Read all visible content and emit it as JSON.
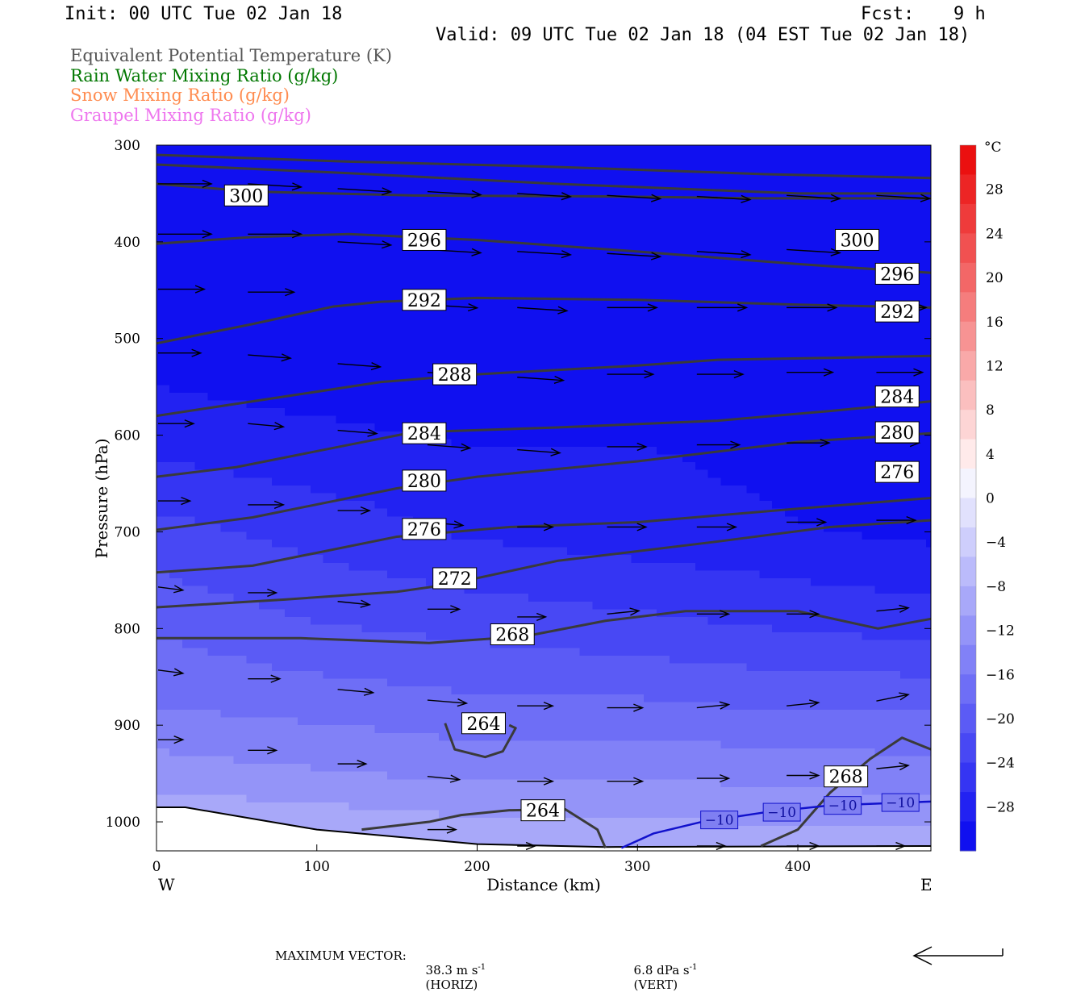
{
  "header": {
    "init": "Init: 00 UTC Tue 02 Jan 18",
    "fcst_label": "Fcst:",
    "fcst_value": "9 h",
    "valid": "Valid: 09 UTC Tue 02 Jan 18 (04 EST Tue 02 Jan 18)"
  },
  "fields": [
    {
      "label": "Equivalent Potential Temperature (K)",
      "color": "#555555"
    },
    {
      "label": "Rain Water Mixing Ratio (g/kg)",
      "color": "#007700"
    },
    {
      "label": "Snow Mixing Ratio (g/kg)",
      "color": "#ff8c50"
    },
    {
      "label": "Graupel Mixing Ratio (g/kg)",
      "color": "#ee77ee"
    }
  ],
  "footer": {
    "max_vector_label": "MAXIMUM VECTOR:",
    "horiz_value": "38.3 m s",
    "horiz_exp": "-1",
    "horiz_tag": "(HORIZ)",
    "vert_value": "6.8 dPa s",
    "vert_exp": "-1",
    "vert_tag": "(VERT)"
  },
  "chart_data": {
    "type": "cross-section",
    "xlabel": "Distance (km)",
    "ylabel": "Pressure (hPa)",
    "xlim": [
      0,
      483
    ],
    "ylim": [
      1030,
      300
    ],
    "x_ticks": [
      0,
      100,
      200,
      300,
      400
    ],
    "y_ticks": [
      300,
      400,
      500,
      600,
      700,
      800,
      900,
      1000
    ],
    "x_end_labels": {
      "left": "W",
      "right": "E"
    },
    "colorbar": {
      "unit": "°C",
      "ticks": [
        28,
        24,
        20,
        16,
        12,
        8,
        4,
        0,
        -4,
        -8,
        -12,
        -16,
        -20,
        -24,
        -28
      ],
      "range": [
        -32,
        32
      ],
      "colors": [
        "#1010f0",
        "#2222f2",
        "#3535f3",
        "#4848f4",
        "#5b5bf5",
        "#6e6ef6",
        "#8181f7",
        "#9494f8",
        "#a8a8f9",
        "#bbbbfb",
        "#ceceFc",
        "#e1e1fd",
        "#f4f4fe",
        "#ffeaea",
        "#fdd5d5",
        "#fbbfbf",
        "#f9a9a9",
        "#f79393",
        "#f57d7d",
        "#f36767",
        "#f15151",
        "#ef3b3b",
        "#ed2525",
        "#eb1010"
      ]
    },
    "theta_e_contours": [
      {
        "level": 300,
        "points": [
          [
            0,
            340
          ],
          [
            60,
            348
          ],
          [
            160,
            352
          ],
          [
            280,
            353
          ],
          [
            380,
            355
          ],
          [
            483,
            355
          ]
        ]
      },
      {
        "level": 300,
        "points": [
          [
            0,
            310
          ],
          [
            120,
            317
          ],
          [
            240,
            322
          ],
          [
            380,
            330
          ],
          [
            483,
            334
          ]
        ]
      },
      {
        "level": 300,
        "points": [
          [
            0,
            320
          ],
          [
            120,
            329
          ],
          [
            250,
            340
          ],
          [
            400,
            350
          ],
          [
            483,
            350
          ]
        ]
      },
      {
        "level": 296,
        "points": [
          [
            0,
            402
          ],
          [
            60,
            395
          ],
          [
            120,
            392
          ],
          [
            200,
            398
          ],
          [
            300,
            410
          ],
          [
            400,
            423
          ],
          [
            483,
            432
          ]
        ]
      },
      {
        "level": 292,
        "points": [
          [
            0,
            505
          ],
          [
            60,
            485
          ],
          [
            110,
            467
          ],
          [
            140,
            462
          ],
          [
            200,
            458
          ],
          [
            300,
            460
          ],
          [
            400,
            465
          ],
          [
            483,
            468
          ]
        ]
      },
      {
        "level": 288,
        "points": [
          [
            0,
            580
          ],
          [
            80,
            560
          ],
          [
            140,
            545
          ],
          [
            200,
            537
          ],
          [
            300,
            528
          ],
          [
            350,
            522
          ],
          [
            420,
            520
          ],
          [
            483,
            518
          ]
        ]
      },
      {
        "level": 284,
        "points": [
          [
            0,
            643
          ],
          [
            50,
            633
          ],
          [
            120,
            610
          ],
          [
            160,
            597
          ],
          [
            250,
            592
          ],
          [
            350,
            585
          ],
          [
            420,
            575
          ],
          [
            483,
            565
          ]
        ]
      },
      {
        "level": 280,
        "points": [
          [
            0,
            698
          ],
          [
            60,
            685
          ],
          [
            150,
            655
          ],
          [
            200,
            643
          ],
          [
            300,
            627
          ],
          [
            400,
            607
          ],
          [
            483,
            598
          ]
        ]
      },
      {
        "level": 276,
        "points": [
          [
            0,
            742
          ],
          [
            60,
            735
          ],
          [
            150,
            705
          ],
          [
            220,
            695
          ],
          [
            300,
            690
          ],
          [
            400,
            676
          ],
          [
            483,
            665
          ]
        ]
      },
      {
        "level": 272,
        "points": [
          [
            0,
            778
          ],
          [
            80,
            770
          ],
          [
            150,
            762
          ],
          [
            180,
            755
          ],
          [
            250,
            730
          ],
          [
            350,
            710
          ],
          [
            420,
            695
          ],
          [
            483,
            688
          ]
        ]
      },
      {
        "level": 268,
        "points": [
          [
            0,
            810
          ],
          [
            90,
            810
          ],
          [
            170,
            815
          ],
          [
            230,
            808
          ],
          [
            280,
            792
          ],
          [
            330,
            782
          ],
          [
            400,
            782
          ],
          [
            450,
            800
          ],
          [
            483,
            790
          ]
        ]
      },
      {
        "level": 264,
        "points": [
          [
            180,
            898
          ],
          [
            186,
            925
          ],
          [
            205,
            933
          ],
          [
            216,
            927
          ],
          [
            224,
            903
          ],
          [
            220,
            900
          ]
        ]
      },
      {
        "level": 264,
        "points": [
          [
            128,
            1008
          ],
          [
            170,
            1000
          ],
          [
            190,
            993
          ],
          [
            220,
            988
          ],
          [
            255,
            987
          ],
          [
            275,
            1008
          ],
          [
            280,
            1027
          ]
        ]
      },
      {
        "level": 268,
        "points": [
          [
            377,
            1025
          ],
          [
            400,
            1008
          ],
          [
            420,
            970
          ],
          [
            445,
            935
          ],
          [
            465,
            913
          ],
          [
            483,
            925
          ]
        ]
      }
    ],
    "theta_e_labels": [
      {
        "text": "300",
        "x": 56,
        "p": 352
      },
      {
        "text": "296",
        "x": 167,
        "p": 398
      },
      {
        "text": "300",
        "x": 437,
        "p": 398
      },
      {
        "text": "296",
        "x": 462,
        "p": 433
      },
      {
        "text": "292",
        "x": 167,
        "p": 460
      },
      {
        "text": "292",
        "x": 462,
        "p": 472
      },
      {
        "text": "288",
        "x": 186,
        "p": 537
      },
      {
        "text": "284",
        "x": 462,
        "p": 560
      },
      {
        "text": "284",
        "x": 167,
        "p": 598
      },
      {
        "text": "280",
        "x": 462,
        "p": 597
      },
      {
        "text": "276",
        "x": 462,
        "p": 638
      },
      {
        "text": "280",
        "x": 167,
        "p": 647
      },
      {
        "text": "276",
        "x": 167,
        "p": 697
      },
      {
        "text": "272",
        "x": 186,
        "p": 748
      },
      {
        "text": "268",
        "x": 222,
        "p": 806
      },
      {
        "text": "264",
        "x": 204,
        "p": 898
      },
      {
        "text": "268",
        "x": 430,
        "p": 953
      },
      {
        "text": "264",
        "x": 241,
        "p": 988
      }
    ],
    "isotherm": {
      "level": -10,
      "points": [
        [
          290,
          1027
        ],
        [
          310,
          1012
        ],
        [
          340,
          1000
        ],
        [
          380,
          990
        ],
        [
          420,
          983
        ],
        [
          483,
          979
        ]
      ],
      "labels": [
        {
          "text": "-10",
          "x": 351,
          "p": 998
        },
        {
          "text": "-10",
          "x": 390,
          "p": 990
        },
        {
          "text": "-10",
          "x": 428,
          "p": 983
        },
        {
          "text": "-10",
          "x": 464,
          "p": 980
        }
      ]
    },
    "surface": [
      [
        0,
        985
      ],
      [
        18,
        985
      ],
      [
        100,
        1008
      ],
      [
        200,
        1023
      ],
      [
        280,
        1026
      ],
      [
        483,
        1025
      ]
    ],
    "temperature_field": [
      {
        "p": 300,
        "t": [
          -31,
          -31,
          -31,
          -31,
          -31,
          -31
        ]
      },
      {
        "p": 500,
        "t": [
          -31,
          -31,
          -31,
          -31,
          -31,
          -31
        ]
      },
      {
        "p": 560,
        "t": [
          -29,
          -30,
          -31,
          -31,
          -31,
          -31
        ]
      },
      {
        "p": 620,
        "t": [
          -27,
          -28,
          -29,
          -29,
          -30,
          -31
        ]
      },
      {
        "p": 700,
        "t": [
          -23,
          -25,
          -27,
          -28,
          -29,
          -30
        ]
      },
      {
        "p": 800,
        "t": [
          -19,
          -21,
          -22,
          -23,
          -24,
          -25
        ]
      },
      {
        "p": 880,
        "t": [
          -16,
          -17,
          -18,
          -18,
          -19,
          -19
        ]
      },
      {
        "p": 950,
        "t": [
          -12,
          -13,
          -14,
          -14,
          -14,
          -15
        ]
      },
      {
        "p": 1030,
        "t": [
          -6,
          -7,
          -8,
          -8,
          -9,
          -9
        ]
      }
    ],
    "temperature_columns_km": [
      0,
      96,
      193,
      290,
      386,
      483
    ],
    "wind_vectors_note": "horizontal circulation vectors",
    "wind_vectors": [
      {
        "x": 0,
        "p": 340,
        "u": 30,
        "w": 0
      },
      {
        "x": 56,
        "p": 340,
        "u": 30,
        "w": -1
      },
      {
        "x": 112,
        "p": 345,
        "u": 30,
        "w": -1
      },
      {
        "x": 168,
        "p": 348,
        "u": 30,
        "w": -1
      },
      {
        "x": 224,
        "p": 350,
        "u": 30,
        "w": -1
      },
      {
        "x": 280,
        "p": 352,
        "u": 30,
        "w": -1
      },
      {
        "x": 336,
        "p": 353,
        "u": 30,
        "w": -1
      },
      {
        "x": 392,
        "p": 352,
        "u": 30,
        "w": -1
      },
      {
        "x": 448,
        "p": 352,
        "u": 30,
        "w": -1
      },
      {
        "x": 0,
        "p": 392,
        "u": 30,
        "w": 0
      },
      {
        "x": 56,
        "p": 392,
        "u": 30,
        "w": 0
      },
      {
        "x": 112,
        "p": 400,
        "u": 30,
        "w": -1
      },
      {
        "x": 168,
        "p": 408,
        "u": 30,
        "w": -1
      },
      {
        "x": 224,
        "p": 410,
        "u": 30,
        "w": -1
      },
      {
        "x": 280,
        "p": 412,
        "u": 30,
        "w": -1
      },
      {
        "x": 336,
        "p": 410,
        "u": 30,
        "w": -1
      },
      {
        "x": 392,
        "p": 408,
        "u": 30,
        "w": -1
      },
      {
        "x": 0,
        "p": 449,
        "u": 26,
        "w": 0
      },
      {
        "x": 56,
        "p": 452,
        "u": 26,
        "w": 0
      },
      {
        "x": 168,
        "p": 465,
        "u": 28,
        "w": -1
      },
      {
        "x": 224,
        "p": 468,
        "u": 28,
        "w": -1
      },
      {
        "x": 280,
        "p": 468,
        "u": 28,
        "w": 0
      },
      {
        "x": 336,
        "p": 468,
        "u": 28,
        "w": 0
      },
      {
        "x": 392,
        "p": 468,
        "u": 28,
        "w": 0
      },
      {
        "x": 448,
        "p": 468,
        "u": 28,
        "w": 0
      },
      {
        "x": 0,
        "p": 515,
        "u": 24,
        "w": 0
      },
      {
        "x": 56,
        "p": 517,
        "u": 24,
        "w": -1
      },
      {
        "x": 112,
        "p": 526,
        "u": 24,
        "w": -1
      },
      {
        "x": 168,
        "p": 535,
        "u": 24,
        "w": -1
      },
      {
        "x": 224,
        "p": 540,
        "u": 26,
        "w": -1
      },
      {
        "x": 280,
        "p": 537,
        "u": 26,
        "w": 0
      },
      {
        "x": 336,
        "p": 537,
        "u": 26,
        "w": 0
      },
      {
        "x": 392,
        "p": 535,
        "u": 26,
        "w": 0
      },
      {
        "x": 448,
        "p": 535,
        "u": 26,
        "w": 0
      },
      {
        "x": 0,
        "p": 588,
        "u": 20,
        "w": 0
      },
      {
        "x": 56,
        "p": 588,
        "u": 20,
        "w": -1
      },
      {
        "x": 112,
        "p": 595,
        "u": 22,
        "w": -1
      },
      {
        "x": 168,
        "p": 610,
        "u": 24,
        "w": -1
      },
      {
        "x": 224,
        "p": 615,
        "u": 24,
        "w": -1
      },
      {
        "x": 280,
        "p": 612,
        "u": 22,
        "w": 0
      },
      {
        "x": 336,
        "p": 610,
        "u": 24,
        "w": 0
      },
      {
        "x": 392,
        "p": 608,
        "u": 24,
        "w": 0
      },
      {
        "x": 448,
        "p": 608,
        "u": 24,
        "w": 0
      },
      {
        "x": 0,
        "p": 668,
        "u": 18,
        "w": 0
      },
      {
        "x": 56,
        "p": 672,
        "u": 20,
        "w": 0
      },
      {
        "x": 112,
        "p": 678,
        "u": 18,
        "w": 0
      },
      {
        "x": 168,
        "p": 690,
        "u": 20,
        "w": -1
      },
      {
        "x": 224,
        "p": 695,
        "u": 20,
        "w": 0
      },
      {
        "x": 280,
        "p": 695,
        "u": 22,
        "w": 0
      },
      {
        "x": 336,
        "p": 695,
        "u": 22,
        "w": 0
      },
      {
        "x": 392,
        "p": 690,
        "u": 22,
        "w": 0
      },
      {
        "x": 448,
        "p": 688,
        "u": 22,
        "w": 0
      },
      {
        "x": 0,
        "p": 757,
        "u": 14,
        "w": -1
      },
      {
        "x": 56,
        "p": 763,
        "u": 16,
        "w": 0
      },
      {
        "x": 112,
        "p": 772,
        "u": 18,
        "w": -1
      },
      {
        "x": 168,
        "p": 780,
        "u": 18,
        "w": 0
      },
      {
        "x": 224,
        "p": 788,
        "u": 16,
        "w": 0
      },
      {
        "x": 280,
        "p": 785,
        "u": 18,
        "w": 1
      },
      {
        "x": 336,
        "p": 785,
        "u": 18,
        "w": 0
      },
      {
        "x": 392,
        "p": 785,
        "u": 18,
        "w": 0
      },
      {
        "x": 448,
        "p": 782,
        "u": 18,
        "w": 1
      },
      {
        "x": 0,
        "p": 843,
        "u": 14,
        "w": -1
      },
      {
        "x": 56,
        "p": 852,
        "u": 18,
        "w": 0
      },
      {
        "x": 112,
        "p": 863,
        "u": 20,
        "w": -1
      },
      {
        "x": 168,
        "p": 874,
        "u": 22,
        "w": -1
      },
      {
        "x": 224,
        "p": 880,
        "u": 20,
        "w": 0
      },
      {
        "x": 280,
        "p": 882,
        "u": 20,
        "w": 0
      },
      {
        "x": 336,
        "p": 882,
        "u": 18,
        "w": 1
      },
      {
        "x": 392,
        "p": 880,
        "u": 18,
        "w": 1
      },
      {
        "x": 448,
        "p": 875,
        "u": 18,
        "w": 2
      },
      {
        "x": 0,
        "p": 915,
        "u": 14,
        "w": 0
      },
      {
        "x": 56,
        "p": 926,
        "u": 16,
        "w": 0
      },
      {
        "x": 112,
        "p": 940,
        "u": 16,
        "w": 0
      },
      {
        "x": 168,
        "p": 953,
        "u": 18,
        "w": -1
      },
      {
        "x": 224,
        "p": 958,
        "u": 20,
        "w": 0
      },
      {
        "x": 280,
        "p": 958,
        "u": 20,
        "w": 0
      },
      {
        "x": 336,
        "p": 955,
        "u": 18,
        "w": 0
      },
      {
        "x": 392,
        "p": 952,
        "u": 18,
        "w": 0
      },
      {
        "x": 448,
        "p": 945,
        "u": 18,
        "w": 1
      },
      {
        "x": 168,
        "p": 1008,
        "u": 16,
        "w": 0
      },
      {
        "x": 224,
        "p": 1025,
        "u": 10,
        "w": 0
      },
      {
        "x": 336,
        "p": 1025,
        "u": 16,
        "w": 0
      },
      {
        "x": 392,
        "p": 1025,
        "u": 18,
        "w": 0
      },
      {
        "x": 448,
        "p": 1025,
        "u": 16,
        "w": 0
      }
    ]
  }
}
